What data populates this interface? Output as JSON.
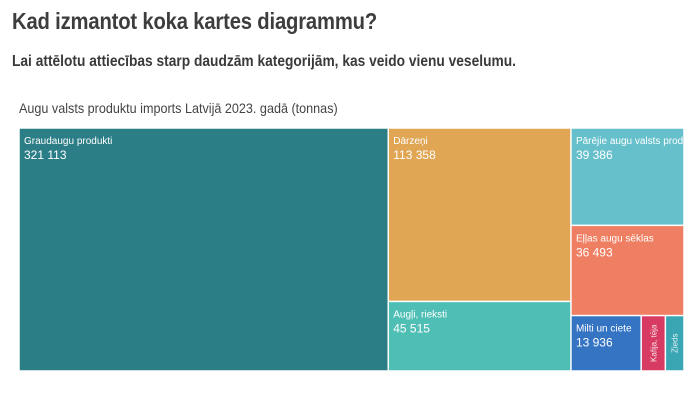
{
  "header": {
    "title": "Kad izmantot koka kartes diagrammu?",
    "subtitle": "Lai attēlotu attiecības starp daudzām kategorijām, kas veido vienu veselumu."
  },
  "chart_data": {
    "type": "treemap",
    "title": "Augu valsts produktu imports Latvijā 2023. gadā (tonnas)",
    "items": [
      {
        "name": "Graudaugu produkti",
        "value": 321113,
        "label": "321 113",
        "color": "#2c7e86"
      },
      {
        "name": "Dārzeņi",
        "value": 113358,
        "label": "113 358",
        "color": "#e0a654"
      },
      {
        "name": "Augļi, rieksti",
        "value": 45515,
        "label": "45 515",
        "color": "#4fbfb5"
      },
      {
        "name": "Pārējie augu valsts produkti",
        "value": 39386,
        "label": "39 386",
        "color": "#66c0cb"
      },
      {
        "name": "Eļļas augu sēklas",
        "value": 36493,
        "label": "36 493",
        "color": "#ef7f62"
      },
      {
        "name": "Milti un ciete",
        "value": 13936,
        "label": "13 936",
        "color": "#3574c3"
      },
      {
        "name": "Kafija, tēja",
        "value": 4800,
        "label": "",
        "color": "#d73a62"
      },
      {
        "name": "Zieds",
        "value": 3700,
        "label": "",
        "color": "#3aa6b3"
      }
    ]
  }
}
